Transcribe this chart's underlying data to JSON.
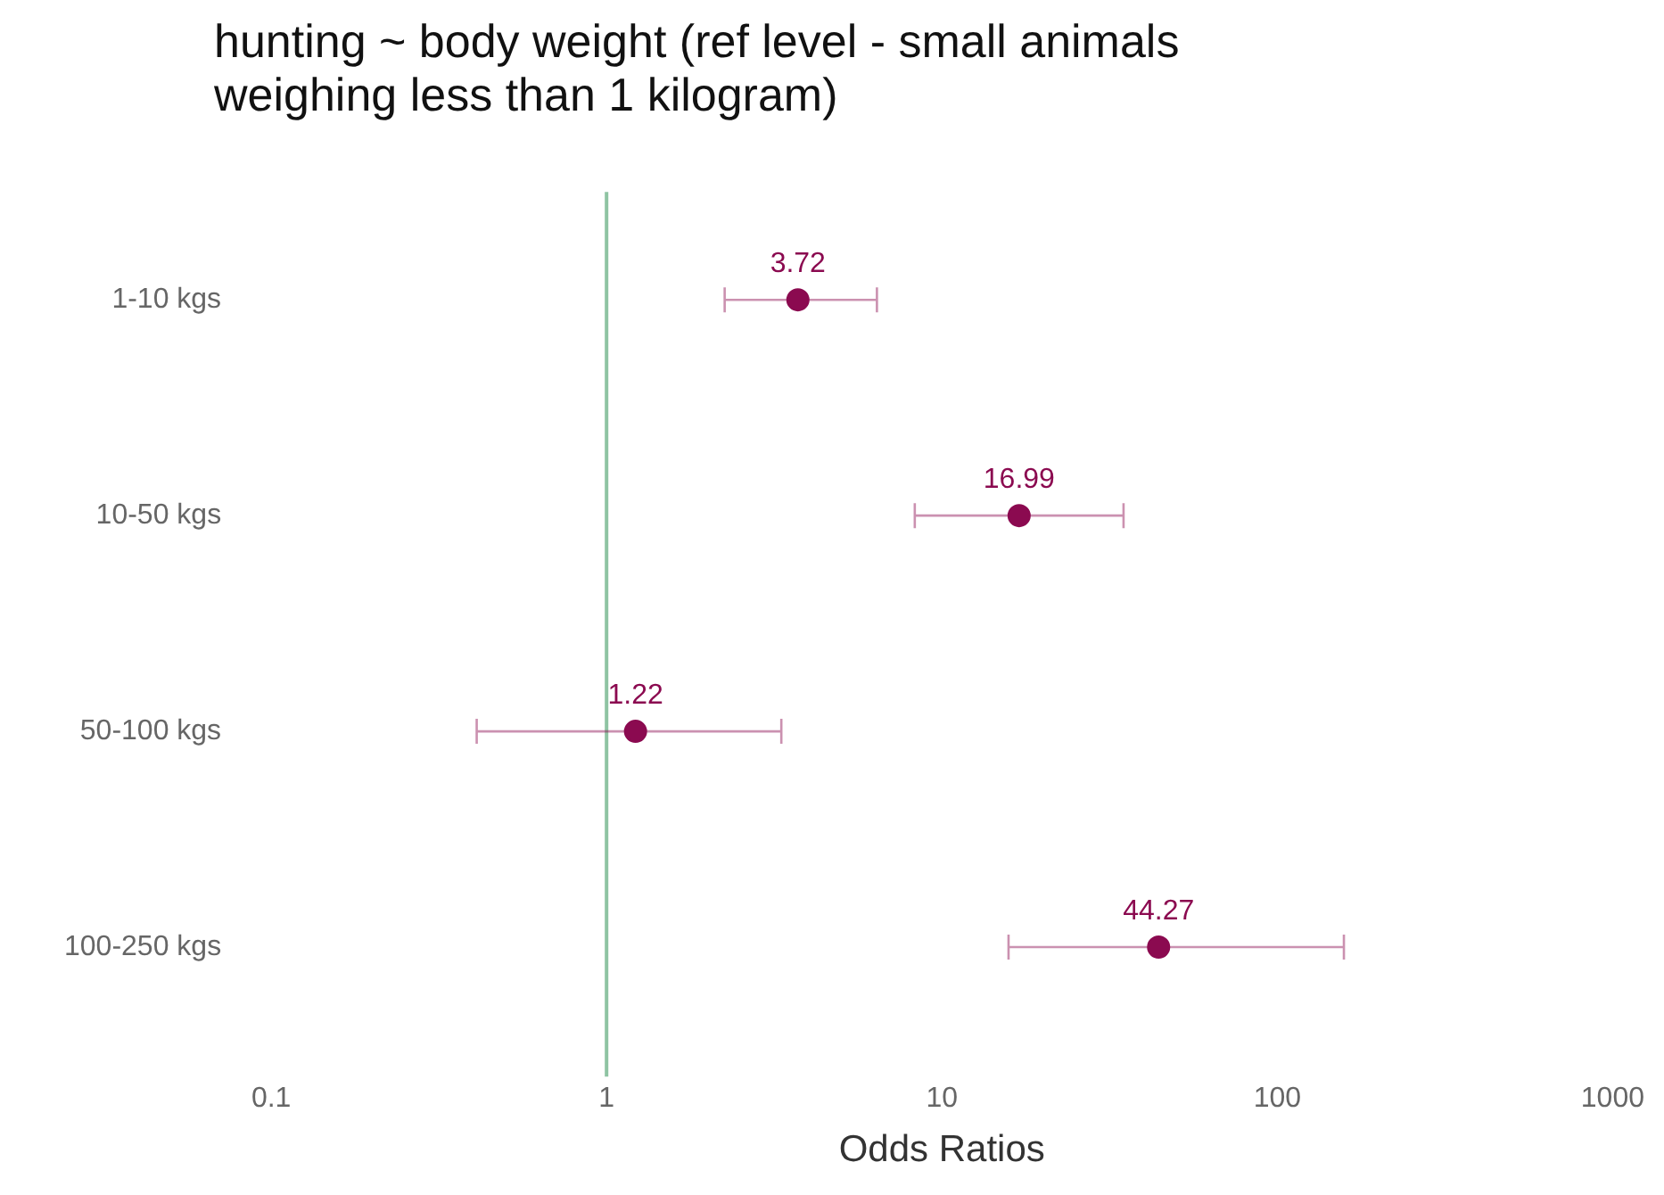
{
  "chart_data": {
    "type": "scatter",
    "title": "hunting ~ body weight (ref level - small animals weighing less than 1 kilogram)",
    "xlabel": "Odds Ratios",
    "orientation": "horizontal",
    "categories": [
      "1-10 kgs",
      "10-50 kgs",
      "50-100 kgs",
      "100-250 kgs"
    ],
    "series": [
      {
        "color": "#8b0a50",
        "values": [
          3.72,
          16.99,
          1.22,
          44.27
        ],
        "errors": [
          [
            2.25,
            6.4
          ],
          [
            8.3,
            34.8
          ],
          [
            0.41,
            3.32
          ],
          [
            15.8,
            158
          ]
        ]
      }
    ],
    "data_labels": true,
    "log": "x",
    "xlim": [
      0.1,
      1000
    ],
    "xticks": [
      0.1,
      1,
      10,
      100,
      1000
    ],
    "marker": "circle",
    "ref_lines": [
      {
        "axis": "x",
        "value": 1,
        "color": "#8fc4a3"
      }
    ]
  }
}
